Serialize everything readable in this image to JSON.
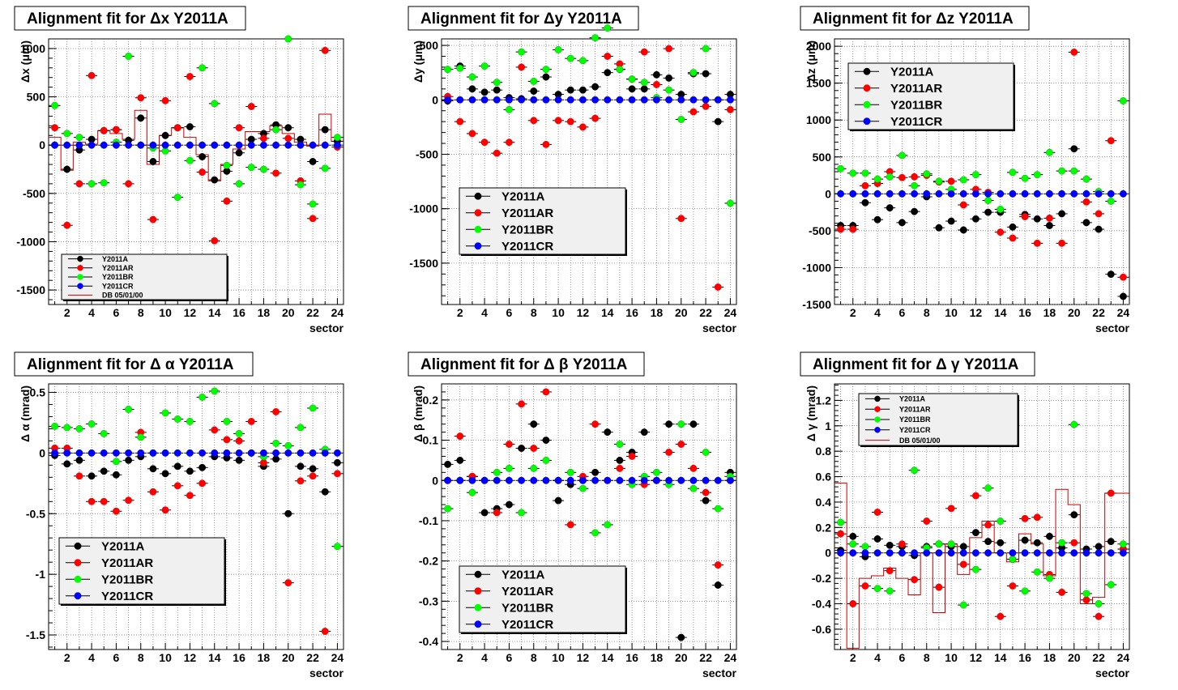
{
  "colors": {
    "Y2011A": "#000000",
    "Y2011AR": "#ff0000",
    "Y2011BR": "#00ff00",
    "Y2011CR": "#0000ff",
    "DB": "#cc0000"
  },
  "footer_text": "",
  "chart_data": [
    {
      "type": "scatter",
      "title": "Alignment fit for  Δx Y2011A",
      "xlabel": "sector",
      "ylabel": "Δx (μm)",
      "xlim": [
        0.5,
        24.5
      ],
      "ylim": [
        -1650,
        1100
      ],
      "yticks": [
        -1500,
        -1000,
        -500,
        0,
        500,
        1000
      ],
      "xticks": [
        2,
        4,
        6,
        8,
        10,
        12,
        14,
        16,
        18,
        20,
        22,
        24
      ],
      "grid": true,
      "legend_position": "bottom-left",
      "series": [
        {
          "name": "Y2011A",
          "values": [
            0,
            -250,
            -50,
            60,
            150,
            160,
            50,
            280,
            -170,
            100,
            180,
            190,
            -120,
            -360,
            -270,
            -80,
            60,
            120,
            210,
            180,
            60,
            -170,
            160,
            40
          ]
        },
        {
          "name": "Y2011AR",
          "values": [
            180,
            -830,
            -400,
            720,
            150,
            160,
            -400,
            490,
            -770,
            460,
            180,
            710,
            -280,
            -990,
            -580,
            180,
            400,
            70,
            -290,
            70,
            -370,
            -760,
            980,
            -20
          ]
        },
        {
          "name": "Y2011BR",
          "values": [
            410,
            120,
            80,
            -400,
            -390,
            30,
            920,
            0,
            -30,
            -60,
            -540,
            -160,
            800,
            430,
            -210,
            -400,
            -230,
            -250,
            160,
            1100,
            -410,
            -610,
            -240,
            80
          ]
        },
        {
          "name": "Y2011CR",
          "values": [
            0,
            0,
            0,
            0,
            0,
            0,
            0,
            0,
            0,
            0,
            0,
            0,
            0,
            0,
            0,
            0,
            0,
            0,
            0,
            0,
            0,
            0,
            0,
            0
          ]
        },
        {
          "name": "DB 05/01/00",
          "hist": [
            80,
            -260,
            30,
            10,
            150,
            120,
            60,
            360,
            -200,
            100,
            180,
            80,
            -100,
            -370,
            -200,
            -40,
            140,
            140,
            200,
            120,
            30,
            -10,
            320,
            40
          ]
        }
      ]
    },
    {
      "type": "scatter",
      "title": "Alignment fit for  Δy Y2011A",
      "xlabel": "sector",
      "ylabel": "Δy (μm)",
      "xlim": [
        0.5,
        24.5
      ],
      "ylim": [
        -1880,
        560
      ],
      "yticks": [
        -1500,
        -1000,
        -500,
        0,
        500
      ],
      "xticks": [
        2,
        4,
        6,
        8,
        10,
        12,
        14,
        16,
        18,
        20,
        22,
        24
      ],
      "grid": true,
      "legend_position": "bottom-left",
      "series": [
        {
          "name": "Y2011A",
          "values": [
            -10,
            310,
            100,
            70,
            90,
            20,
            10,
            80,
            210,
            50,
            90,
            90,
            120,
            250,
            280,
            100,
            100,
            230,
            200,
            50,
            240,
            240,
            -200,
            50
          ]
        },
        {
          "name": "Y2011AR",
          "values": [
            30,
            -200,
            -310,
            -390,
            -490,
            -390,
            300,
            -190,
            -410,
            -190,
            -200,
            -250,
            -170,
            400,
            330,
            190,
            440,
            140,
            470,
            -1090,
            -110,
            -60,
            -1720,
            -90
          ]
        },
        {
          "name": "Y2011BR",
          "values": [
            280,
            290,
            210,
            310,
            160,
            -90,
            440,
            170,
            280,
            460,
            380,
            360,
            570,
            660,
            280,
            190,
            160,
            20,
            90,
            -180,
            250,
            470,
            0,
            -950
          ]
        },
        {
          "name": "Y2011CR",
          "values": [
            0,
            0,
            0,
            0,
            0,
            0,
            0,
            0,
            0,
            0,
            0,
            0,
            0,
            0,
            0,
            0,
            0,
            0,
            0,
            0,
            0,
            0,
            0,
            0
          ]
        }
      ]
    },
    {
      "type": "scatter",
      "title": "Alignment fit for  Δz Y2011A",
      "xlabel": "sector",
      "ylabel": "Δz (μm)",
      "xlim": [
        0.5,
        24.5
      ],
      "ylim": [
        -1500,
        2100
      ],
      "yticks": [
        -1500,
        -1000,
        -500,
        0,
        500,
        1000,
        1500,
        2000
      ],
      "xticks": [
        2,
        4,
        6,
        8,
        10,
        12,
        14,
        16,
        18,
        20,
        22,
        24
      ],
      "grid": true,
      "legend_position": "top-left",
      "series": [
        {
          "name": "Y2011A",
          "values": [
            -430,
            -430,
            -120,
            -350,
            -190,
            -390,
            -240,
            -40,
            -460,
            -370,
            -490,
            -340,
            -250,
            -250,
            -450,
            -280,
            -340,
            -430,
            -270,
            610,
            -390,
            -480,
            -1090,
            -1390
          ]
        },
        {
          "name": "Y2011AR",
          "values": [
            -480,
            -480,
            110,
            140,
            300,
            220,
            230,
            250,
            160,
            170,
            -150,
            60,
            20,
            -520,
            -600,
            -310,
            -670,
            -330,
            -670,
            1920,
            -110,
            -270,
            720,
            -1130
          ]
        },
        {
          "name": "Y2011BR",
          "values": [
            340,
            280,
            280,
            200,
            230,
            520,
            110,
            270,
            170,
            60,
            190,
            260,
            -90,
            -210,
            290,
            210,
            260,
            560,
            310,
            310,
            200,
            30,
            -100,
            1260
          ]
        },
        {
          "name": "Y2011CR",
          "values": [
            0,
            0,
            0,
            0,
            0,
            0,
            0,
            0,
            0,
            0,
            0,
            0,
            0,
            0,
            0,
            0,
            0,
            0,
            0,
            0,
            0,
            0,
            0,
            0
          ]
        }
      ]
    },
    {
      "type": "scatter",
      "title": "Alignment fit for  Δ α Y2011A",
      "xlabel": "sector",
      "ylabel": "Δ α (mrad)",
      "xlim": [
        0.5,
        24.5
      ],
      "ylim": [
        -1.62,
        0.57
      ],
      "yticks": [
        -1.5,
        -1,
        -0.5,
        0,
        0.5
      ],
      "xticks": [
        2,
        4,
        6,
        8,
        10,
        12,
        14,
        16,
        18,
        20,
        22,
        24
      ],
      "grid": true,
      "legend_position": "bottom-left",
      "series": [
        {
          "name": "Y2011A",
          "values": [
            -0.02,
            -0.09,
            -0.06,
            -0.19,
            -0.15,
            -0.18,
            -0.06,
            -0.03,
            -0.13,
            -0.17,
            -0.11,
            -0.15,
            -0.12,
            -0.03,
            -0.04,
            -0.06,
            0.0,
            -0.11,
            -0.05,
            -0.5,
            -0.11,
            -0.13,
            -0.32,
            -0.08
          ]
        },
        {
          "name": "Y2011AR",
          "values": [
            0.04,
            0.04,
            -0.19,
            -0.4,
            -0.4,
            -0.48,
            -0.39,
            0.17,
            -0.32,
            -0.47,
            -0.27,
            -0.35,
            -0.25,
            0.19,
            0.11,
            0.1,
            0.26,
            -0.08,
            0.34,
            -1.07,
            -0.23,
            -0.19,
            -1.47,
            -0.17
          ]
        },
        {
          "name": "Y2011BR",
          "values": [
            0.22,
            0.21,
            0.2,
            0.24,
            0.16,
            -0.07,
            0.36,
            0.13,
            0.0,
            0.33,
            0.28,
            0.26,
            0.46,
            0.51,
            0.26,
            0.16,
            0.0,
            -0.03,
            0.08,
            0.06,
            0.21,
            0.37,
            0.03,
            -0.77
          ]
        },
        {
          "name": "Y2011CR",
          "values": [
            0,
            0,
            0,
            0,
            0,
            0,
            0,
            0,
            0,
            0,
            0,
            0,
            0,
            0,
            0,
            0,
            0,
            0,
            0,
            0,
            0,
            0,
            0,
            0
          ]
        }
      ]
    },
    {
      "type": "scatter",
      "title": "Alignment fit for  Δ β Y2011A",
      "xlabel": "sector",
      "ylabel": "Δ β (mrad)",
      "xlim": [
        0.5,
        24.5
      ],
      "ylim": [
        -0.42,
        0.24
      ],
      "yticks": [
        -0.4,
        -0.3,
        -0.2,
        -0.1,
        0,
        0.1,
        0.2
      ],
      "xticks": [
        2,
        4,
        6,
        8,
        10,
        12,
        14,
        16,
        18,
        20,
        22,
        24
      ],
      "grid": true,
      "legend_position": "bottom-left",
      "series": [
        {
          "name": "Y2011A",
          "values": [
            0.04,
            0.05,
            0.01,
            -0.08,
            -0.07,
            -0.06,
            0.08,
            0.14,
            0.1,
            -0.05,
            -0.01,
            0.0,
            0.02,
            0.12,
            0.05,
            0.07,
            0.12,
            0.0,
            0.14,
            -0.39,
            0.14,
            -0.05,
            -0.26,
            0.02
          ]
        },
        {
          "name": "Y2011AR",
          "values": [
            0.0,
            0.11,
            0.01,
            0.0,
            -0.08,
            0.09,
            0.19,
            0.08,
            0.22,
            0.0,
            -0.11,
            0.01,
            0.14,
            0.0,
            0.03,
            0.06,
            -0.01,
            0.0,
            0.07,
            0.09,
            0.03,
            -0.03,
            -0.21,
            0.0
          ]
        },
        {
          "name": "Y2011BR",
          "values": [
            -0.07,
            0.0,
            -0.03,
            0.0,
            0.02,
            0.03,
            -0.08,
            0.03,
            0.05,
            0.0,
            0.02,
            -0.02,
            -0.13,
            -0.11,
            0.09,
            -0.01,
            0.01,
            0.02,
            -0.01,
            0.14,
            -0.02,
            0.07,
            -0.07,
            0.01
          ]
        },
        {
          "name": "Y2011CR",
          "values": [
            0,
            0,
            0,
            0,
            0,
            0,
            0,
            0,
            0,
            0,
            0,
            0,
            0,
            0,
            0,
            0,
            0,
            0,
            0,
            0,
            0,
            0,
            0,
            0
          ]
        }
      ]
    },
    {
      "type": "scatter",
      "title": "Alignment fit for  Δ γ Y2011A",
      "xlabel": "sector",
      "ylabel": "Δ γ (mrad)",
      "xlim": [
        0.5,
        24.5
      ],
      "ylim": [
        -0.76,
        1.33
      ],
      "yticks": [
        -0.6,
        -0.4,
        -0.2,
        0,
        0.2,
        0.4,
        0.6,
        0.8,
        1,
        1.2
      ],
      "xticks": [
        2,
        4,
        6,
        8,
        10,
        12,
        14,
        16,
        18,
        20,
        22,
        24
      ],
      "grid": true,
      "legend_position": "top-left",
      "series": [
        {
          "name": "Y2011A",
          "values": [
            0.02,
            0.13,
            -0.03,
            0.11,
            0.06,
            0.05,
            -0.02,
            0.05,
            0.07,
            0.05,
            0.05,
            0.16,
            0.09,
            0.08,
            -0.05,
            0.1,
            0.08,
            0.13,
            0.04,
            0.3,
            0.03,
            0.05,
            0.09,
            0.03
          ]
        },
        {
          "name": "Y2011AR",
          "values": [
            0.15,
            -0.4,
            -0.26,
            0.32,
            -0.14,
            0.07,
            -0.21,
            0.25,
            -0.27,
            0.35,
            -0.09,
            0.45,
            0.22,
            -0.5,
            -0.26,
            0.27,
            0.28,
            -0.17,
            -0.31,
            0.08,
            -0.37,
            -0.5,
            0.47,
            0.03
          ]
        },
        {
          "name": "Y2011BR",
          "values": [
            0.24,
            0.07,
            0.05,
            -0.28,
            -0.3,
            0.0,
            0.65,
            0.04,
            0.07,
            0.07,
            -0.41,
            -0.13,
            0.51,
            0.25,
            -0.05,
            -0.3,
            -0.15,
            -0.2,
            0.08,
            1.01,
            -0.32,
            -0.4,
            -0.25,
            0.07
          ]
        },
        {
          "name": "Y2011CR",
          "values": [
            0,
            0,
            0,
            0,
            0,
            0,
            0,
            0,
            0,
            0,
            0,
            0,
            0,
            0,
            0,
            0,
            0,
            0,
            0,
            0,
            0,
            0,
            0,
            0
          ]
        },
        {
          "name": "DB 05/01/00",
          "hist": [
            0.55,
            -0.75,
            -0.2,
            -0.18,
            -0.12,
            -0.2,
            -0.33,
            0.0,
            -0.47,
            0.07,
            -0.17,
            0.12,
            0.25,
            0.0,
            -0.07,
            0.15,
            0.07,
            -0.18,
            0.5,
            0.38,
            -0.4,
            -0.35,
            0.47,
            0.47
          ]
        }
      ]
    }
  ]
}
